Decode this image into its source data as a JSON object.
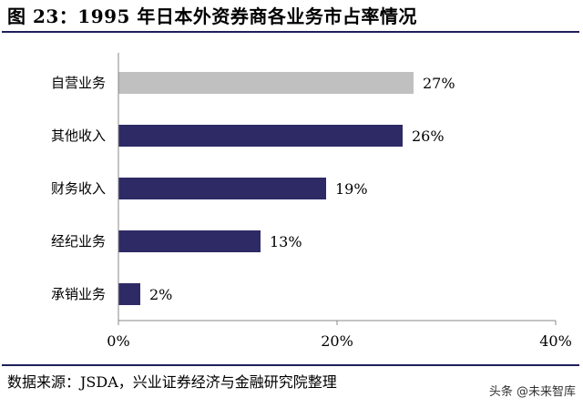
{
  "title": "图 23：1995 年日本外资券商各业务市占率情况",
  "source": "数据来源：JSDA，兴业证券经济与金融研究院整理",
  "watermark": "头条 @未来智库",
  "colors": {
    "highlight": "#c0c0c0",
    "bar": "#2e2a66",
    "axis": "#888888"
  },
  "chart_data": {
    "type": "bar",
    "orientation": "horizontal",
    "categories": [
      "自营业务",
      "其他收入",
      "财务收入",
      "经纪业务",
      "承销业务"
    ],
    "values": [
      27,
      26,
      19,
      13,
      2
    ],
    "data_labels": [
      "27%",
      "26%",
      "19%",
      "13%",
      "2%"
    ],
    "highlighted_category": "自营业务",
    "xlim": [
      0,
      40
    ],
    "xticks": [
      0,
      20,
      40
    ],
    "xtick_labels": [
      "0%",
      "20%",
      "40%"
    ],
    "grid": false,
    "legend": "none"
  }
}
